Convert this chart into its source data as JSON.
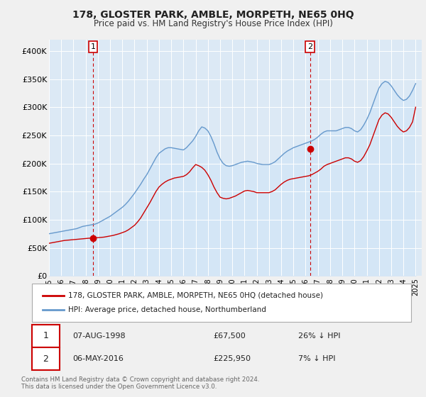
{
  "title": "178, GLOSTER PARK, AMBLE, MORPETH, NE65 0HQ",
  "subtitle": "Price paid vs. HM Land Registry's House Price Index (HPI)",
  "legend_label_red": "178, GLOSTER PARK, AMBLE, MORPETH, NE65 0HQ (detached house)",
  "legend_label_blue": "HPI: Average price, detached house, Northumberland",
  "footnote": "Contains HM Land Registry data © Crown copyright and database right 2024.\nThis data is licensed under the Open Government Licence v3.0.",
  "sale1_date": "07-AUG-1998",
  "sale1_price": "£67,500",
  "sale1_hpi": "26% ↓ HPI",
  "sale2_date": "06-MAY-2016",
  "sale2_price": "£225,950",
  "sale2_hpi": "7% ↓ HPI",
  "marker1_x": 1998.6,
  "marker1_y": 67500,
  "marker2_x": 2016.35,
  "marker2_y": 225950,
  "xlim": [
    1995,
    2025.5
  ],
  "ylim": [
    0,
    420000
  ],
  "yticks": [
    0,
    50000,
    100000,
    150000,
    200000,
    250000,
    300000,
    350000,
    400000
  ],
  "ytick_labels": [
    "£0",
    "£50K",
    "£100K",
    "£150K",
    "£200K",
    "£250K",
    "£300K",
    "£350K",
    "£400K"
  ],
  "xtick_years": [
    1995,
    1996,
    1997,
    1998,
    1999,
    2000,
    2001,
    2002,
    2003,
    2004,
    2005,
    2006,
    2007,
    2008,
    2009,
    2010,
    2011,
    2012,
    2013,
    2014,
    2015,
    2016,
    2017,
    2018,
    2019,
    2020,
    2021,
    2022,
    2023,
    2024,
    2025
  ],
  "red_color": "#cc0000",
  "blue_color": "#6699cc",
  "blue_fill": "#d0e4f7",
  "bg_color": "#f0f0f0",
  "plot_bg_color": "#dce9f5",
  "grid_color": "#ffffff",
  "hpi_x": [
    1995.0,
    1995.25,
    1995.5,
    1995.75,
    1996.0,
    1996.25,
    1996.5,
    1996.75,
    1997.0,
    1997.25,
    1997.5,
    1997.75,
    1998.0,
    1998.25,
    1998.5,
    1998.75,
    1999.0,
    1999.25,
    1999.5,
    1999.75,
    2000.0,
    2000.25,
    2000.5,
    2000.75,
    2001.0,
    2001.25,
    2001.5,
    2001.75,
    2002.0,
    2002.25,
    2002.5,
    2002.75,
    2003.0,
    2003.25,
    2003.5,
    2003.75,
    2004.0,
    2004.25,
    2004.5,
    2004.75,
    2005.0,
    2005.25,
    2005.5,
    2005.75,
    2006.0,
    2006.25,
    2006.5,
    2006.75,
    2007.0,
    2007.25,
    2007.5,
    2007.75,
    2008.0,
    2008.25,
    2008.5,
    2008.75,
    2009.0,
    2009.25,
    2009.5,
    2009.75,
    2010.0,
    2010.25,
    2010.5,
    2010.75,
    2011.0,
    2011.25,
    2011.5,
    2011.75,
    2012.0,
    2012.25,
    2012.5,
    2012.75,
    2013.0,
    2013.25,
    2013.5,
    2013.75,
    2014.0,
    2014.25,
    2014.5,
    2014.75,
    2015.0,
    2015.25,
    2015.5,
    2015.75,
    2016.0,
    2016.25,
    2016.5,
    2016.75,
    2017.0,
    2017.25,
    2017.5,
    2017.75,
    2018.0,
    2018.25,
    2018.5,
    2018.75,
    2019.0,
    2019.25,
    2019.5,
    2019.75,
    2020.0,
    2020.25,
    2020.5,
    2020.75,
    2021.0,
    2021.25,
    2021.5,
    2021.75,
    2022.0,
    2022.25,
    2022.5,
    2022.75,
    2023.0,
    2023.25,
    2023.5,
    2023.75,
    2024.0,
    2024.25,
    2024.5,
    2024.75,
    2025.0
  ],
  "hpi_y": [
    75000,
    76000,
    77000,
    78000,
    79000,
    80000,
    81000,
    82000,
    83000,
    84000,
    86000,
    88000,
    89000,
    90000,
    91000,
    92000,
    94000,
    97000,
    100000,
    103000,
    106000,
    110000,
    114000,
    118000,
    122000,
    127000,
    133000,
    140000,
    147000,
    155000,
    163000,
    172000,
    180000,
    190000,
    200000,
    210000,
    218000,
    222000,
    226000,
    228000,
    228000,
    227000,
    226000,
    225000,
    224000,
    228000,
    234000,
    240000,
    248000,
    258000,
    265000,
    263000,
    258000,
    248000,
    235000,
    220000,
    208000,
    200000,
    196000,
    195000,
    196000,
    198000,
    200000,
    202000,
    203000,
    204000,
    203000,
    202000,
    200000,
    199000,
    198000,
    198000,
    198000,
    200000,
    203000,
    208000,
    213000,
    218000,
    222000,
    225000,
    228000,
    230000,
    232000,
    234000,
    236000,
    238000,
    240000,
    243000,
    247000,
    252000,
    256000,
    258000,
    258000,
    258000,
    258000,
    260000,
    262000,
    264000,
    264000,
    262000,
    258000,
    256000,
    260000,
    268000,
    278000,
    290000,
    305000,
    320000,
    334000,
    342000,
    346000,
    344000,
    338000,
    330000,
    322000,
    316000,
    312000,
    314000,
    320000,
    330000,
    342000
  ],
  "price_x": [
    1995.0,
    1995.25,
    1995.5,
    1995.75,
    1996.0,
    1996.25,
    1996.5,
    1996.75,
    1997.0,
    1997.25,
    1997.5,
    1997.75,
    1998.0,
    1998.25,
    1998.5,
    1998.75,
    1999.0,
    1999.25,
    1999.5,
    1999.75,
    2000.0,
    2000.25,
    2000.5,
    2000.75,
    2001.0,
    2001.25,
    2001.5,
    2001.75,
    2002.0,
    2002.25,
    2002.5,
    2002.75,
    2003.0,
    2003.25,
    2003.5,
    2003.75,
    2004.0,
    2004.25,
    2004.5,
    2004.75,
    2005.0,
    2005.25,
    2005.5,
    2005.75,
    2006.0,
    2006.25,
    2006.5,
    2006.75,
    2007.0,
    2007.25,
    2007.5,
    2007.75,
    2008.0,
    2008.25,
    2008.5,
    2008.75,
    2009.0,
    2009.25,
    2009.5,
    2009.75,
    2010.0,
    2010.25,
    2010.5,
    2010.75,
    2011.0,
    2011.25,
    2011.5,
    2011.75,
    2012.0,
    2012.25,
    2012.5,
    2012.75,
    2013.0,
    2013.25,
    2013.5,
    2013.75,
    2014.0,
    2014.25,
    2014.5,
    2014.75,
    2015.0,
    2015.25,
    2015.5,
    2015.75,
    2016.0,
    2016.25,
    2016.5,
    2016.75,
    2017.0,
    2017.25,
    2017.5,
    2017.75,
    2018.0,
    2018.25,
    2018.5,
    2018.75,
    2019.0,
    2019.25,
    2019.5,
    2019.75,
    2020.0,
    2020.25,
    2020.5,
    2020.75,
    2021.0,
    2021.25,
    2021.5,
    2021.75,
    2022.0,
    2022.25,
    2022.5,
    2022.75,
    2023.0,
    2023.25,
    2023.5,
    2023.75,
    2024.0,
    2024.25,
    2024.5,
    2024.75,
    2025.0
  ],
  "price_y": [
    58000,
    59000,
    60000,
    61000,
    62000,
    63000,
    63500,
    64000,
    64500,
    65000,
    65500,
    66000,
    66500,
    67000,
    67500,
    67800,
    68000,
    68500,
    69000,
    70000,
    71000,
    72000,
    73500,
    75000,
    77000,
    79000,
    82000,
    86000,
    90000,
    96000,
    103000,
    112000,
    121000,
    130000,
    140000,
    150000,
    158000,
    163000,
    167000,
    170000,
    172000,
    174000,
    175000,
    176000,
    177000,
    180000,
    185000,
    192000,
    198000,
    196000,
    193000,
    188000,
    180000,
    170000,
    158000,
    148000,
    140000,
    138000,
    137000,
    138000,
    140000,
    142000,
    145000,
    148000,
    151000,
    152000,
    151000,
    150000,
    148000,
    148000,
    148000,
    148000,
    148000,
    150000,
    153000,
    158000,
    163000,
    167000,
    170000,
    172000,
    173000,
    174000,
    175000,
    176000,
    177000,
    178000,
    180000,
    183000,
    186000,
    190000,
    195000,
    198000,
    200000,
    202000,
    204000,
    206000,
    208000,
    210000,
    210000,
    208000,
    204000,
    202000,
    205000,
    212000,
    222000,
    233000,
    248000,
    263000,
    278000,
    286000,
    290000,
    288000,
    282000,
    274000,
    266000,
    260000,
    256000,
    258000,
    264000,
    274000,
    300000
  ]
}
